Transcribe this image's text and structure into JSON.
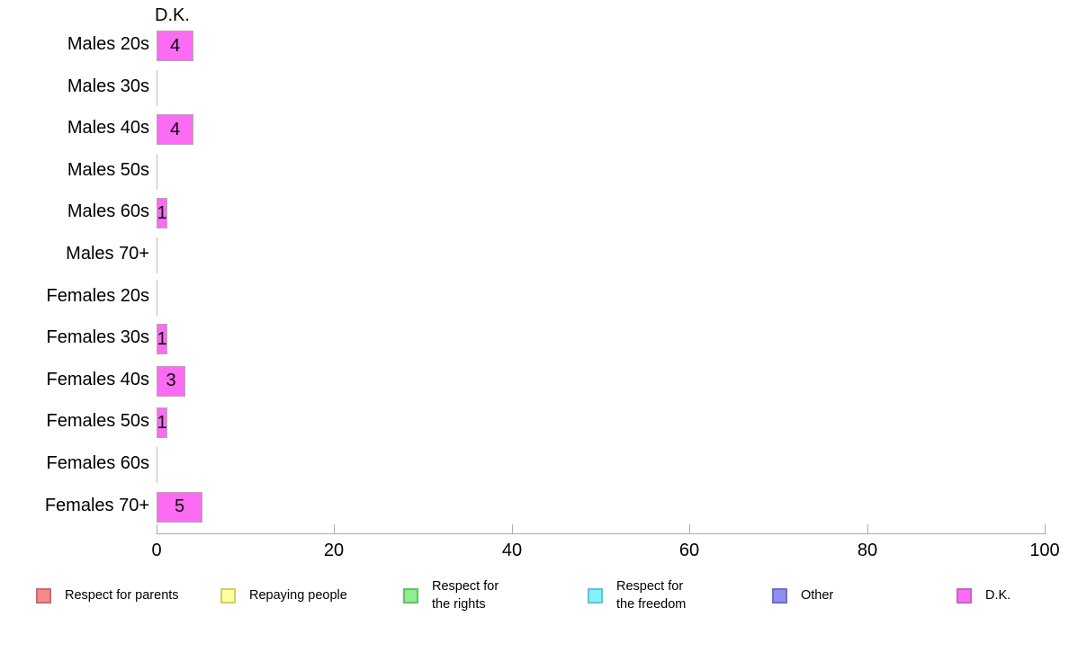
{
  "chart_data": {
    "type": "bar",
    "orientation": "horizontal",
    "title": "D.K.",
    "categories": [
      "Males 20s",
      "Males 30s",
      "Males 40s",
      "Males 50s",
      "Males 60s",
      "Males 70+",
      "Females 20s",
      "Females 30s",
      "Females 40s",
      "Females 50s",
      "Females 60s",
      "Females 70+"
    ],
    "values": [
      4,
      0,
      4,
      0,
      1,
      0,
      0,
      1,
      3,
      1,
      0,
      5
    ],
    "xlabel": "",
    "ylabel": "",
    "xlim": [
      0,
      100
    ],
    "x_ticks": [
      0,
      20,
      40,
      60,
      80,
      100
    ],
    "grid": "off",
    "bar_color": "#fb6cf2",
    "bar_border_color": "#ababab",
    "axis_color": "#ababab",
    "legend_position": "bottom",
    "legend": [
      {
        "lines": [
          "Respect for parents"
        ],
        "color": "#f58a8a",
        "border": "#c9696f"
      },
      {
        "lines": [
          "Repaying people"
        ],
        "color": "#ffff9e",
        "border": "#cfcf6e"
      },
      {
        "lines": [
          "Respect for",
          "the rights"
        ],
        "color": "#8fee8f",
        "border": "#63c267"
      },
      {
        "lines": [
          "Respect for",
          "the freedom"
        ],
        "color": "#85f2fa",
        "border": "#5fc3d8"
      },
      {
        "lines": [
          "Other"
        ],
        "color": "#8f8ff0",
        "border": "#6d6dc9"
      },
      {
        "lines": [
          "D.K."
        ],
        "color": "#fb6cf2",
        "border": "#c264c4"
      }
    ]
  }
}
